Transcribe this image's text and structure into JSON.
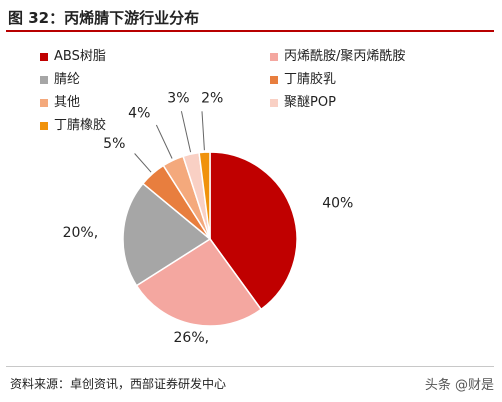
{
  "title": "图 32：丙烯腈下游行业分布",
  "source": "资料来源：卓创资讯，西部证券研发中心",
  "watermark": "头条 @财是",
  "chart_data": {
    "type": "pie",
    "title": "",
    "start_angle_deg": 0,
    "direction": "clockwise",
    "slices": [
      {
        "name": "ABS树脂",
        "value": 40,
        "label": "40%",
        "color": "#c00000"
      },
      {
        "name": "丙烯酰胺/聚丙烯酰胺",
        "value": 26,
        "label": "26%,",
        "color": "#f4a7a0"
      },
      {
        "name": "腈纶",
        "value": 20,
        "label": "20%,",
        "color": "#a6a6a6"
      },
      {
        "name": "丁腈胶乳",
        "value": 5,
        "label": "5%",
        "color": "#e87e3e"
      },
      {
        "name": "其他",
        "value": 4,
        "label": "4%",
        "color": "#f4a97c"
      },
      {
        "name": "聚醚POP",
        "value": 3,
        "label": "3%",
        "color": "#f9d0c4"
      },
      {
        "name": "丁腈橡胶",
        "value": 2,
        "label": "2%",
        "color": "#f0920b"
      }
    ],
    "legend": {
      "position": "top",
      "columns": 2
    }
  }
}
